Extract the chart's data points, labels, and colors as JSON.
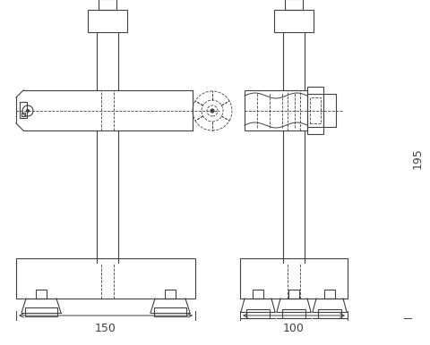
{
  "bg_color": "#ffffff",
  "line_color": "#404040",
  "figsize": [
    4.8,
    3.86
  ],
  "dpi": 100,
  "dim_150_label": "150",
  "dim_100_label": "100",
  "dim_195_label": "195"
}
